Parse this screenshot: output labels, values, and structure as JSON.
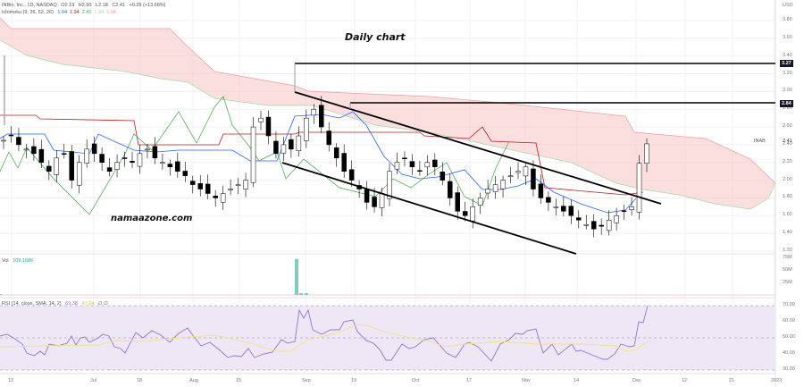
{
  "header": {
    "symbol_line": "INBio, Inc., 1D, NASDAQ",
    "ohlc": {
      "o": "O2.19",
      "h": "H2.50",
      "l": "L2.18",
      "c": "C2.41",
      "chg": "+0.29 (+13.68%)"
    },
    "ichimoku_label": "Ichimoku (9, 26, 52, 26)",
    "ichimoku_values": [
      {
        "v": "1.94",
        "color": "#2962ff"
      },
      {
        "v": "1.94",
        "color": "#b71c1c"
      },
      {
        "v": "2.41",
        "color": "#43a047"
      },
      {
        "v": "1.94",
        "color": "#a5d6a7"
      },
      {
        "v": "1.94",
        "color": "#ef9a9a"
      }
    ]
  },
  "annotations": {
    "title": "Daily chart",
    "watermark": "namaazone.com"
  },
  "price_axis": {
    "currency": "USD",
    "ticks": [
      "3.80",
      "3.60",
      "3.40",
      "3.20",
      "3.00",
      "2.80",
      "2.60",
      "2.40",
      "2.20",
      "2.00",
      "1.80",
      "1.60",
      "1.40",
      "1.20"
    ],
    "last_price": "2.41",
    "last_symbol": "INAB",
    "tags": [
      {
        "label": "3.27",
        "value": 3.27
      },
      {
        "label": "2.84",
        "value": 2.84
      }
    ]
  },
  "volume": {
    "label": "Vol",
    "value": "109.168K",
    "ticks": [
      "75M",
      "50M",
      "25M"
    ]
  },
  "rsi": {
    "label": "RSI (14, close, SMA, 14, 2)",
    "value": "69.38",
    "sma": "47.24",
    "extra": "∅ ∅",
    "ticks": [
      "70.00",
      "60.00",
      "50.00",
      "40.00",
      "30.00"
    ]
  },
  "time_axis": [
    "13",
    "Jul",
    "18",
    "Aug",
    "15",
    "Sep",
    "19",
    "Oct",
    "17",
    "Nov",
    "14",
    "Dec",
    "12",
    "21",
    "2023"
  ],
  "colors": {
    "up": "#ffffff",
    "down": "#000000",
    "tenkan": "#2962ff",
    "kijun": "#b71c1c",
    "chikou": "#43a047",
    "cloud": "#f8c9c9",
    "rsi": "#9575cd",
    "rsi_sma": "#f5e085",
    "rsi_bg": "#ede7f6",
    "vol": "#80cbc4"
  },
  "chart_data": {
    "type": "candlestick",
    "title": "INBio, Inc. — Daily chart (NASDAQ: INAB)",
    "ylim": [
      1.2,
      3.8
    ],
    "x": [
      "Jun 13",
      "Jul",
      "Jul 18",
      "Aug",
      "Aug 15",
      "Sep",
      "Sep 19",
      "Oct",
      "Oct 17",
      "Nov",
      "Nov 14",
      "Dec",
      "Dec 12",
      "Dec 21",
      "2023"
    ],
    "last_bar": {
      "open": 2.19,
      "high": 2.5,
      "low": 2.18,
      "close": 2.41,
      "change": 0.29,
      "change_pct": 13.68
    },
    "levels": [
      3.27,
      2.84
    ],
    "close_series": [
      2.45,
      2.5,
      2.4,
      2.35,
      2.3,
      2.2,
      2.1,
      2.25,
      2.3,
      2.0,
      2.2,
      2.35,
      2.3,
      2.2,
      2.1,
      2.2,
      2.25,
      2.2,
      2.3,
      2.35,
      2.25,
      2.2,
      2.15,
      2.1,
      2.05,
      1.95,
      1.9,
      1.85,
      1.8,
      1.85,
      1.9,
      1.95,
      2.0,
      2.6,
      2.7,
      2.5,
      2.3,
      2.4,
      2.35,
      2.5,
      2.7,
      2.8,
      2.6,
      2.4,
      2.25,
      2.1,
      2.0,
      1.9,
      1.75,
      1.7,
      1.85,
      2.1,
      2.2,
      2.25,
      2.15,
      2.1,
      2.2,
      2.15,
      2.0,
      1.8,
      1.65,
      1.6,
      1.7,
      1.8,
      1.9,
      1.95,
      2.0,
      2.05,
      2.1,
      2.15,
      1.9,
      1.8,
      1.75,
      1.7,
      1.65,
      1.6,
      1.55,
      1.5,
      1.45,
      1.48,
      1.55,
      1.6,
      1.65,
      1.7,
      2.19,
      2.41
    ],
    "rsi_range": [
      30,
      70
    ],
    "rsi_last": 69.38,
    "rsi_sma_last": 47.24,
    "volume_last": "109.168K"
  }
}
